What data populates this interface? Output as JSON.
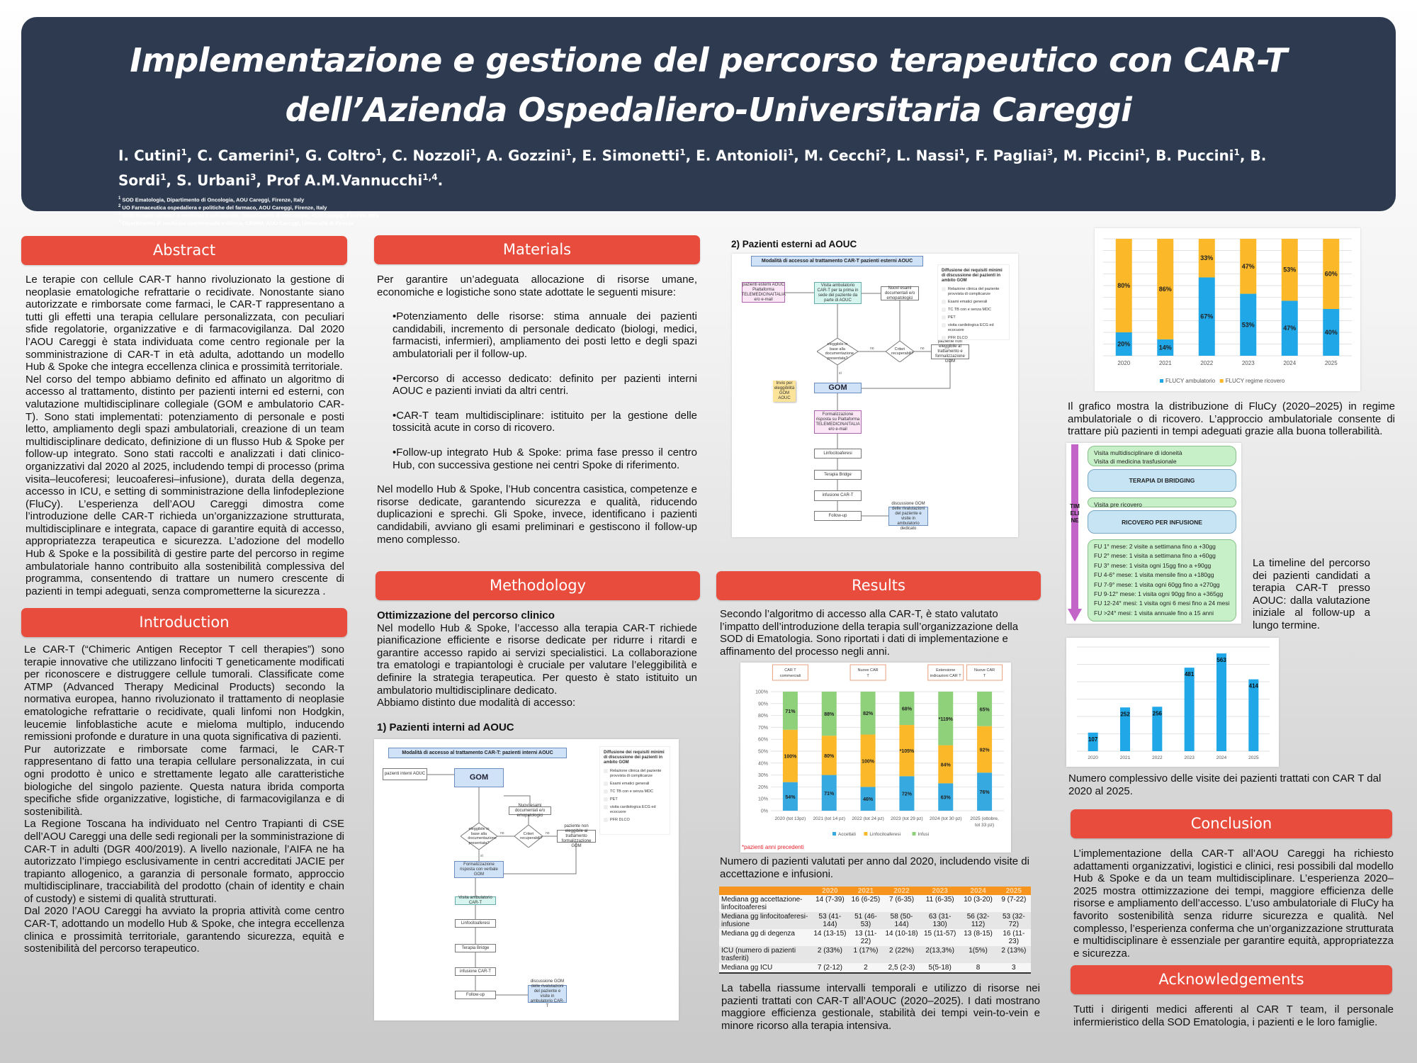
{
  "header": {
    "title_line1": "Implementazione e gestione del percorso terapeutico con CAR-T",
    "title_line2": "dell’Azienda Ospedaliero-Universitaria Careggi",
    "authors": [
      {
        "name": "I. Cutini",
        "aff": "1"
      },
      {
        "name": "C. Camerini",
        "aff": "1"
      },
      {
        "name": "G. Coltro",
        "aff": "1"
      },
      {
        "name": "C. Nozzoli",
        "aff": "1"
      },
      {
        "name": "A. Gozzini",
        "aff": "1"
      },
      {
        "name": "E. Simonetti",
        "aff": "1"
      },
      {
        "name": "E. Antonioli",
        "aff": "1"
      },
      {
        "name": "M. Cecchi",
        "aff": "2"
      },
      {
        "name": "L. Nassi",
        "aff": "1"
      },
      {
        "name": "F. Pagliai",
        "aff": "3"
      },
      {
        "name": "M. Piccini",
        "aff": "1"
      },
      {
        "name": "B. Puccini",
        "aff": "1"
      },
      {
        "name": "B. Sordi",
        "aff": "1"
      },
      {
        "name": "S. Urbani",
        "aff": "3"
      },
      {
        "name": "Prof A.M.Vannucchi",
        "aff": "1,4"
      }
    ],
    "affiliations": [
      {
        "num": "1",
        "text": "SOD Ematologia, Dipartimento di Oncologia, AOU Careggi, Firenze, Italy"
      },
      {
        "num": "2",
        "text": "UO Farmaceutica ospedaliera e politiche del farmaco, AOU Careggi, Firenze, Italy"
      },
      {
        "num": "3",
        "text": "SOD Terapie cellulari e medicina trasfusionale, Dipartimento di Oncologia, AOU Careggi, Firenze, Italy"
      },
      {
        "num": "4",
        "text": "Dipartimento di medicina sperimentale e clinica, CRIMM, AOU Careggi, Università di Firenze"
      }
    ]
  },
  "abstract": {
    "heading": "Abstract",
    "paragraphs": [
      "Le terapie con cellule CAR-T hanno rivoluzionato la gestione di neoplasie ematologiche refrattarie o recidivate. Nonostante siano autorizzate e rimborsate come farmaci, le CAR-T rappresentano a tutti gli effetti una terapia cellulare personalizzata, con peculiari sfide regolatorie, organizzative e di farmacovigilanza. Dal 2020 l’AOU Careggi è stata individuata come centro regionale per la somministrazione di CAR-T in età adulta, adottando un modello Hub & Spoke che integra eccellenza clinica e prossimità territoriale.",
      "Nel corso del tempo abbiamo definito ed affinato un algoritmo di accesso al trattamento, distinto per pazienti interni ed esterni, con valutazione multidisciplinare collegiale (GOM e ambulatorio CAR-T). Sono stati implementati: potenziamento di personale e posti letto, ampliamento degli spazi ambulatoriali, creazione di un team multidisciplinare dedicato, definizione di un flusso Hub & Spoke per follow-up integrato. Sono stati raccolti e analizzati i dati clinico-organizzativi dal 2020 al 2025, includendo tempi di processo (prima visita–leucoferesi; leucoaferesi–infusione), durata della degenza, accesso in ICU, e setting di somministrazione della linfodeplezione (FluCy). L’esperienza dell’AOU Careggi dimostra come l’introduzione delle CAR-T richieda un’organizzazione strutturata, multidisciplinare e integrata, capace di garantire equità di accesso, appropriatezza terapeutica e sicurezza. L’adozione del modello Hub & Spoke e la possibilità di gestire parte del percorso in regime ambulatoriale hanno contribuito alla sostenibilità complessiva del programma, consentendo di trattare un numero crescente di pazienti in tempi adeguati, senza comprometterne la sicurezza ."
    ]
  },
  "introduction": {
    "heading": "Introduction",
    "paragraphs": [
      "Le CAR-T (“Chimeric Antigen Receptor T cell therapies”) sono terapie innovative che utilizzano linfociti T geneticamente modificati per riconoscere e distruggere cellule tumorali. Classificate come ATMP (Advanced Therapy Medicinal Products) secondo la normativa europea, hanno rivoluzionato il trattamento di neoplasie ematologiche refrattarie o recidivate, quali linfomi non Hodgkin, leucemie linfoblastiche acute e mieloma multiplo, inducendo remissioni profonde e durature in una quota significativa di pazienti.",
      "Pur autorizzate e rimborsate come farmaci, le CAR-T rappresentano di fatto una terapia cellulare personalizzata, in cui ogni prodotto è unico e strettamente legato alle caratteristiche biologiche del singolo paziente. Questa natura ibrida comporta specifiche sfide organizzative, logistiche, di farmacovigilanza e di sostenibilità.",
      "La Regione Toscana ha individuato nel Centro Trapianti di CSE dell’AOU Careggi una delle sedi regionali per la somministrazione di CAR-T in adulti (DGR 400/2019). A livello nazionale, l’AIFA ne ha autorizzato l’impiego esclusivamente in centri accreditati JACIE per trapianto allogenico, a garanzia di personale formato, approccio multidisciplinare, tracciabilità del prodotto (chain of identity e chain of custody) e sistemi di qualità strutturati.",
      "Dal 2020 l’AOU Careggi ha avviato la propria attività come centro CAR-T, adottando un modello Hub & Spoke, che integra eccellenza clinica e prossimità territoriale, garantendo sicurezza, equità e sostenibilità del percorso terapeutico."
    ]
  },
  "materials": {
    "heading": "Materials",
    "intro": "Per garantire un’adeguata allocazione di risorse umane, economiche e logistiche sono state adottate le seguenti misure:",
    "bullets": [
      "•Potenziamento delle risorse: stima annuale dei pazienti candidabili, incremento di personale dedicato (biologi, medici, farmacisti, infermieri), ampliamento dei posti letto e degli spazi ambulatoriali per il follow-up.",
      "•Percorso di accesso dedicato: definito per pazienti interni AOUC e pazienti inviati da altri centri.",
      "•CAR-T team multidisciplinare: istituito per la gestione delle tossicità acute in corso di ricovero.",
      "•Follow-up integrato Hub & Spoke: prima fase presso il centro Hub, con successiva gestione nei centri Spoke di riferimento."
    ],
    "outro": "Nel modello Hub & Spoke, l’Hub concentra casistica, competenze e risorse dedicate, garantendo sicurezza e qualità, riducendo duplicazioni e sprechi. Gli Spoke, invece, identificano i pazienti candidabili, avviano gli esami preliminari e gestiscono il follow-up meno complesso."
  },
  "methodology": {
    "heading": "Methodology",
    "subheading": "Ottimizzazione del percorso clinico",
    "text": "Nel modello Hub & Spoke, l’accesso alla terapia CAR-T richiede pianificazione efficiente e risorse dedicate per ridurre i ritardi e garantire accesso rapido ai servizi specialistici. La collaborazione tra ematologi e trapiantologi è cruciale per valutare l’eleggibilità e definire la strategia terapeutica. Per questo è stato istituito un ambulatorio multidisciplinare dedicato.",
    "text2": "Abbiamo distinto due modalità di accesso:",
    "internal_heading": "1) Pazienti interni ad AOUC",
    "external_heading": "2) Pazienti esterni ad AOUC"
  },
  "diagram_internal": {
    "title": "Modalità di accesso al trattamento CAR-T: pazienti interni AOUC",
    "start": "pazienti interni AOUC",
    "gom": "GOM",
    "new_exams": "Nuovi esami documentali e/o emopatologici",
    "decision1": "eleggibile in base alla documentazione presentata?",
    "decision2": "Criteri recuperabili?",
    "not_eligible": "paziente non eleggibile al trattamento formalizzazione GOM",
    "formalization": "Formalizzazione risposta con verbale GOM",
    "visit": "Visita ambulatorio CAR-T",
    "steps": [
      "Linfocitoaferesi",
      "Terapia Bridge",
      "infusione CAR-T",
      "Follow-up"
    ],
    "followup_note": "discussione GOM delle rivalutazioni del paziente e visite in ambulatorio CAR-T",
    "edge_yes": "sì",
    "edge_no": "no",
    "requirements_title": "Diffusione dei requisiti minimi di discussione dei pazienti in ambito GOM",
    "requirements": [
      "Relazione clinica del paziente provvista di complicanze",
      "Esami ematici generali",
      "TC TB con e senza MDC",
      "PET",
      "visita cardiologica ECG ed ecocuore",
      "PFR DLCO"
    ]
  },
  "diagram_external": {
    "title": "Modalità di accesso al trattamento CAR-T pazienti esterni AOUC",
    "start": "pazienti esterni AOUC Piattaforma TELEMEDICINAITALIA e/o e-mail",
    "visit": "Visita ambulatorio CAR-T per la prima in sede del paziente da parte di AOUC",
    "new_exams": "Nuovi esami documentali e/o emopatologici",
    "decision1": "eleggibile in base alla documentazione presentata?",
    "decision2": "Criteri recuperabili?",
    "not_eligible": "paziente non eleggibile al trattamento e formalizzazione GOM",
    "gom": "GOM",
    "sticky": "Invio per eleggibilità GOM AOUC",
    "formalization": "Formalizzazione risposta su Piattaforma TELEMEDICINAITALIA e/o e-mail",
    "steps": [
      "Linfocitoaferesi",
      "Terapia Bridge",
      "infusione CAR-T",
      "Follow-up"
    ],
    "followup_note": "discussione GOM delle rivalutazioni del paziente e visite in ambulatorio dedicato",
    "edge_yes": "sì",
    "edge_no": "no",
    "requirements_title": "Diffusione dei requisiti minimi di discussione dei pazienti in ambito GOM",
    "requirements": [
      "Relazione clinica del paziente provvista di complicanze",
      "Esami ematici generali",
      "TC TB con e senza MDC",
      "PET",
      "visita cardiologica ECG ed ecocuore",
      "PFR DLCO"
    ]
  },
  "results": {
    "heading": "Results",
    "text": "Secondo l’algoritmo di accesso alla CAR-T, è stato valutato l’impatto dell’introduzione della terapia sull’organizzazione della SOD di Ematologia. Sono riportati i dati di implementazione e affinamento del processo negli anni.",
    "chart_caption": "Numero di pazienti valutati per anno dal 2020, includendo visite di accettazione e infusioni.",
    "table_caption": "La tabella riassume intervalli temporali e utilizzo di risorse nei pazienti trattati con CAR-T all’AOUC (2020–2025). I dati mostrano maggiore efficienza gestionale, stabilità dei tempi vein-to-vein e minore ricorso alla terapia intensiva."
  },
  "table": {
    "columns": [
      "",
      "2020",
      "2021",
      "2022",
      "2023",
      "2024",
      "2025"
    ],
    "header_color": "#f7941d",
    "rows": [
      [
        "Mediana gg accettazione-linfocitoaferesi",
        "14 (7-39)",
        "16 (6-25)",
        "7 (6-35)",
        "11 (6-35)",
        "10 (3-20)",
        "9 (7-22)"
      ],
      [
        "Mediana gg linfocitoaferesi-infusione",
        "53 (41-144)",
        "51 (46-53)",
        "58 (50-144)",
        "63 (31-130)",
        "56 (32-112)",
        "53 (32-72)"
      ],
      [
        "Mediana gg di degenza",
        "14 (13-15)",
        "13 (11-22)",
        "14 (10-18)",
        "15 (11-57)",
        "13 (8-15)",
        "16 (11-23)"
      ],
      [
        "ICU (numero di pazienti trasferiti)",
        "2 (33%)",
        "1 (17%)",
        "2 (22%)",
        "2(13,3%)",
        "1(5%)",
        "2 (13%)"
      ],
      [
        "Mediana gg ICU",
        "7 (2-12)",
        "2",
        "2,5 (2-3)",
        "5(5-18)",
        "8",
        "3"
      ]
    ]
  },
  "flucy_caption": "Il grafico mostra la distribuzione di FluCy (2020–2025) in regime ambulatoriale o di ricovero. L’approccio ambulatoriale consente di trattare più pazienti in tempi adeguati grazie alla buona tollerabilità.",
  "timeline": {
    "arrow_label": "TIMELINE",
    "arrow_color": "#c264c8",
    "steps": [
      {
        "type": "green",
        "lines": [
          "Visita multidisciplinare di idoneità",
          "Visita di medicina trasfusionale"
        ]
      },
      {
        "type": "blue",
        "lines": [
          "TERAPIA DI BRIDGING"
        ]
      },
      {
        "type": "green",
        "lines": [
          "Visita pre ricovero"
        ]
      },
      {
        "type": "blue",
        "lines": [
          "RICOVERO PER INFUSIONE"
        ]
      },
      {
        "type": "green",
        "lines": [
          "FU 1° mese: 2 visite a settimana fino a +30gg",
          "FU 2° mese: 1 visita a settimana fino a +60gg",
          "FU 3° mese: 1 visita ogni 15gg fino a +90gg",
          "FU 4-6° mese: 1 visita mensile fino a +180gg",
          "FU 7-9° mese: 1 visita ogni 60gg fino a +270gg",
          "FU 9-12° mese: 1 visita ogni 90gg fino a +365gg",
          "FU 12-24° mesi: 1 visita ogni 6 mesi fino a 24 mesi",
          "FU >24° mesi: 1 visita annuale fino a 15 anni"
        ]
      }
    ],
    "caption": "La timeline del percorso dei pazienti candidati a terapia CAR-T presso AOUC: dalla valutazione iniziale al follow-up a lungo termine."
  },
  "visits_caption": "Numero complessivo delle visite dei pazienti trattati con CAR T dal 2020 al 2025.",
  "conclusion": {
    "heading": "Conclusion",
    "text": "L’implementazione della CAR-T all’AOU Careggi ha richiesto adattamenti organizzativi, logistici e clinici, resi possibili dal modello Hub & Spoke e da un team multidisciplinare. L’esperienza 2020–2025 mostra ottimizzazione dei tempi, maggiore efficienza delle risorse e ampliamento dell’accesso. L’uso ambulatoriale di FluCy ha favorito sostenibilità senza ridurre sicurezza e qualità. Nel complesso, l’esperienza conferma che un’organizzazione strutturata e multidisciplinare è essenziale per garantire equità, appropriatezza e sicurezza."
  },
  "acknowledgements": {
    "heading": "Acknowledgements",
    "text": "Tutti i dirigenti medici afferenti al CAR T team, il personale infermieristico della SOD Ematologia, i pazienti e le loro famiglie."
  },
  "colors": {
    "header_bg": "#2d3a4f",
    "section_red": "#e84c3d",
    "blue": "#1fa7e8",
    "yellow": "#fbb829",
    "green": "#8fd07a",
    "footnote_red": "#e8202a"
  },
  "chart_data": [
    {
      "id": "flucy",
      "type": "bar",
      "stacked": true,
      "categories": [
        "2020",
        "2021",
        "2022",
        "2023",
        "2024",
        "2025"
      ],
      "series": [
        {
          "name": "FLUCY ambulatorio",
          "values": [
            20,
            14,
            67,
            53,
            47,
            40
          ],
          "labels": [
            "20%",
            "14%",
            "67%",
            "53%",
            "47%",
            "40%"
          ],
          "color": "#1fa7e8"
        },
        {
          "name": "FLUCY regime ricovero",
          "values": [
            80,
            86,
            33,
            47,
            53,
            60
          ],
          "labels": [
            "80%",
            "86%",
            "33%",
            "47%",
            "53%",
            "60%"
          ],
          "color": "#fbb829"
        }
      ],
      "ylim": [
        0,
        100
      ],
      "grid": true,
      "legend": "bottom"
    },
    {
      "id": "patients",
      "type": "bar",
      "stacked": true,
      "categories": [
        "2020 (tot 13pz)",
        "2021 (tot 14 pz)",
        "2022 (tot 24 pz)",
        "2023 (tot 29 pz)",
        "2024 (tot 30 pz)",
        "2025 (ottobre, tot 33 pz)"
      ],
      "series": [
        {
          "name": "Accettati",
          "values": [
            24,
            30,
            20,
            29,
            23,
            32
          ],
          "labels": [
            "54%",
            "71%",
            "46%",
            "72%",
            "63%",
            "76%"
          ],
          "color": "#35a9e0"
        },
        {
          "name": "Linfocitoaferesi",
          "values": [
            44,
            33,
            44,
            43,
            32,
            39
          ],
          "labels": [
            "100%",
            "80%",
            "100%",
            "*105%",
            "84%",
            "92%"
          ],
          "color": "#fbb829"
        },
        {
          "name": "Infusi",
          "values": [
            32,
            37,
            36,
            28,
            45,
            29
          ],
          "labels": [
            "71%",
            "88%",
            "82%",
            "68%",
            "*119%",
            "65%"
          ],
          "color": "#8fd07a"
        }
      ],
      "yticks": [
        "0%",
        "10%",
        "20%",
        "30%",
        "40%",
        "50%",
        "60%",
        "70%",
        "80%",
        "90%",
        "100%"
      ],
      "ylim": [
        0,
        100
      ],
      "grid": true,
      "legend": "bottom",
      "annotations": [
        {
          "category": "2020 (tot 13pz)",
          "text": "CAR T commerciali"
        },
        {
          "category": "2022 (tot 24 pz)",
          "text": "Nuove CAR T"
        },
        {
          "category": "2024 (tot 30 pz)",
          "text": "Estensione indicazioni CAR T"
        },
        {
          "category": "2025 (ottobre, tot 33 pz)",
          "text": "Nuove CAR T"
        }
      ],
      "footnote": "*pazienti anni precedenti"
    },
    {
      "id": "visits",
      "type": "bar",
      "categories": [
        "2020",
        "2021",
        "2022",
        "2023",
        "2024",
        "2025"
      ],
      "values": [
        107,
        252,
        256,
        481,
        563,
        414
      ],
      "color": "#1fa7e8",
      "ylim": [
        0,
        600
      ],
      "grid": true
    }
  ]
}
